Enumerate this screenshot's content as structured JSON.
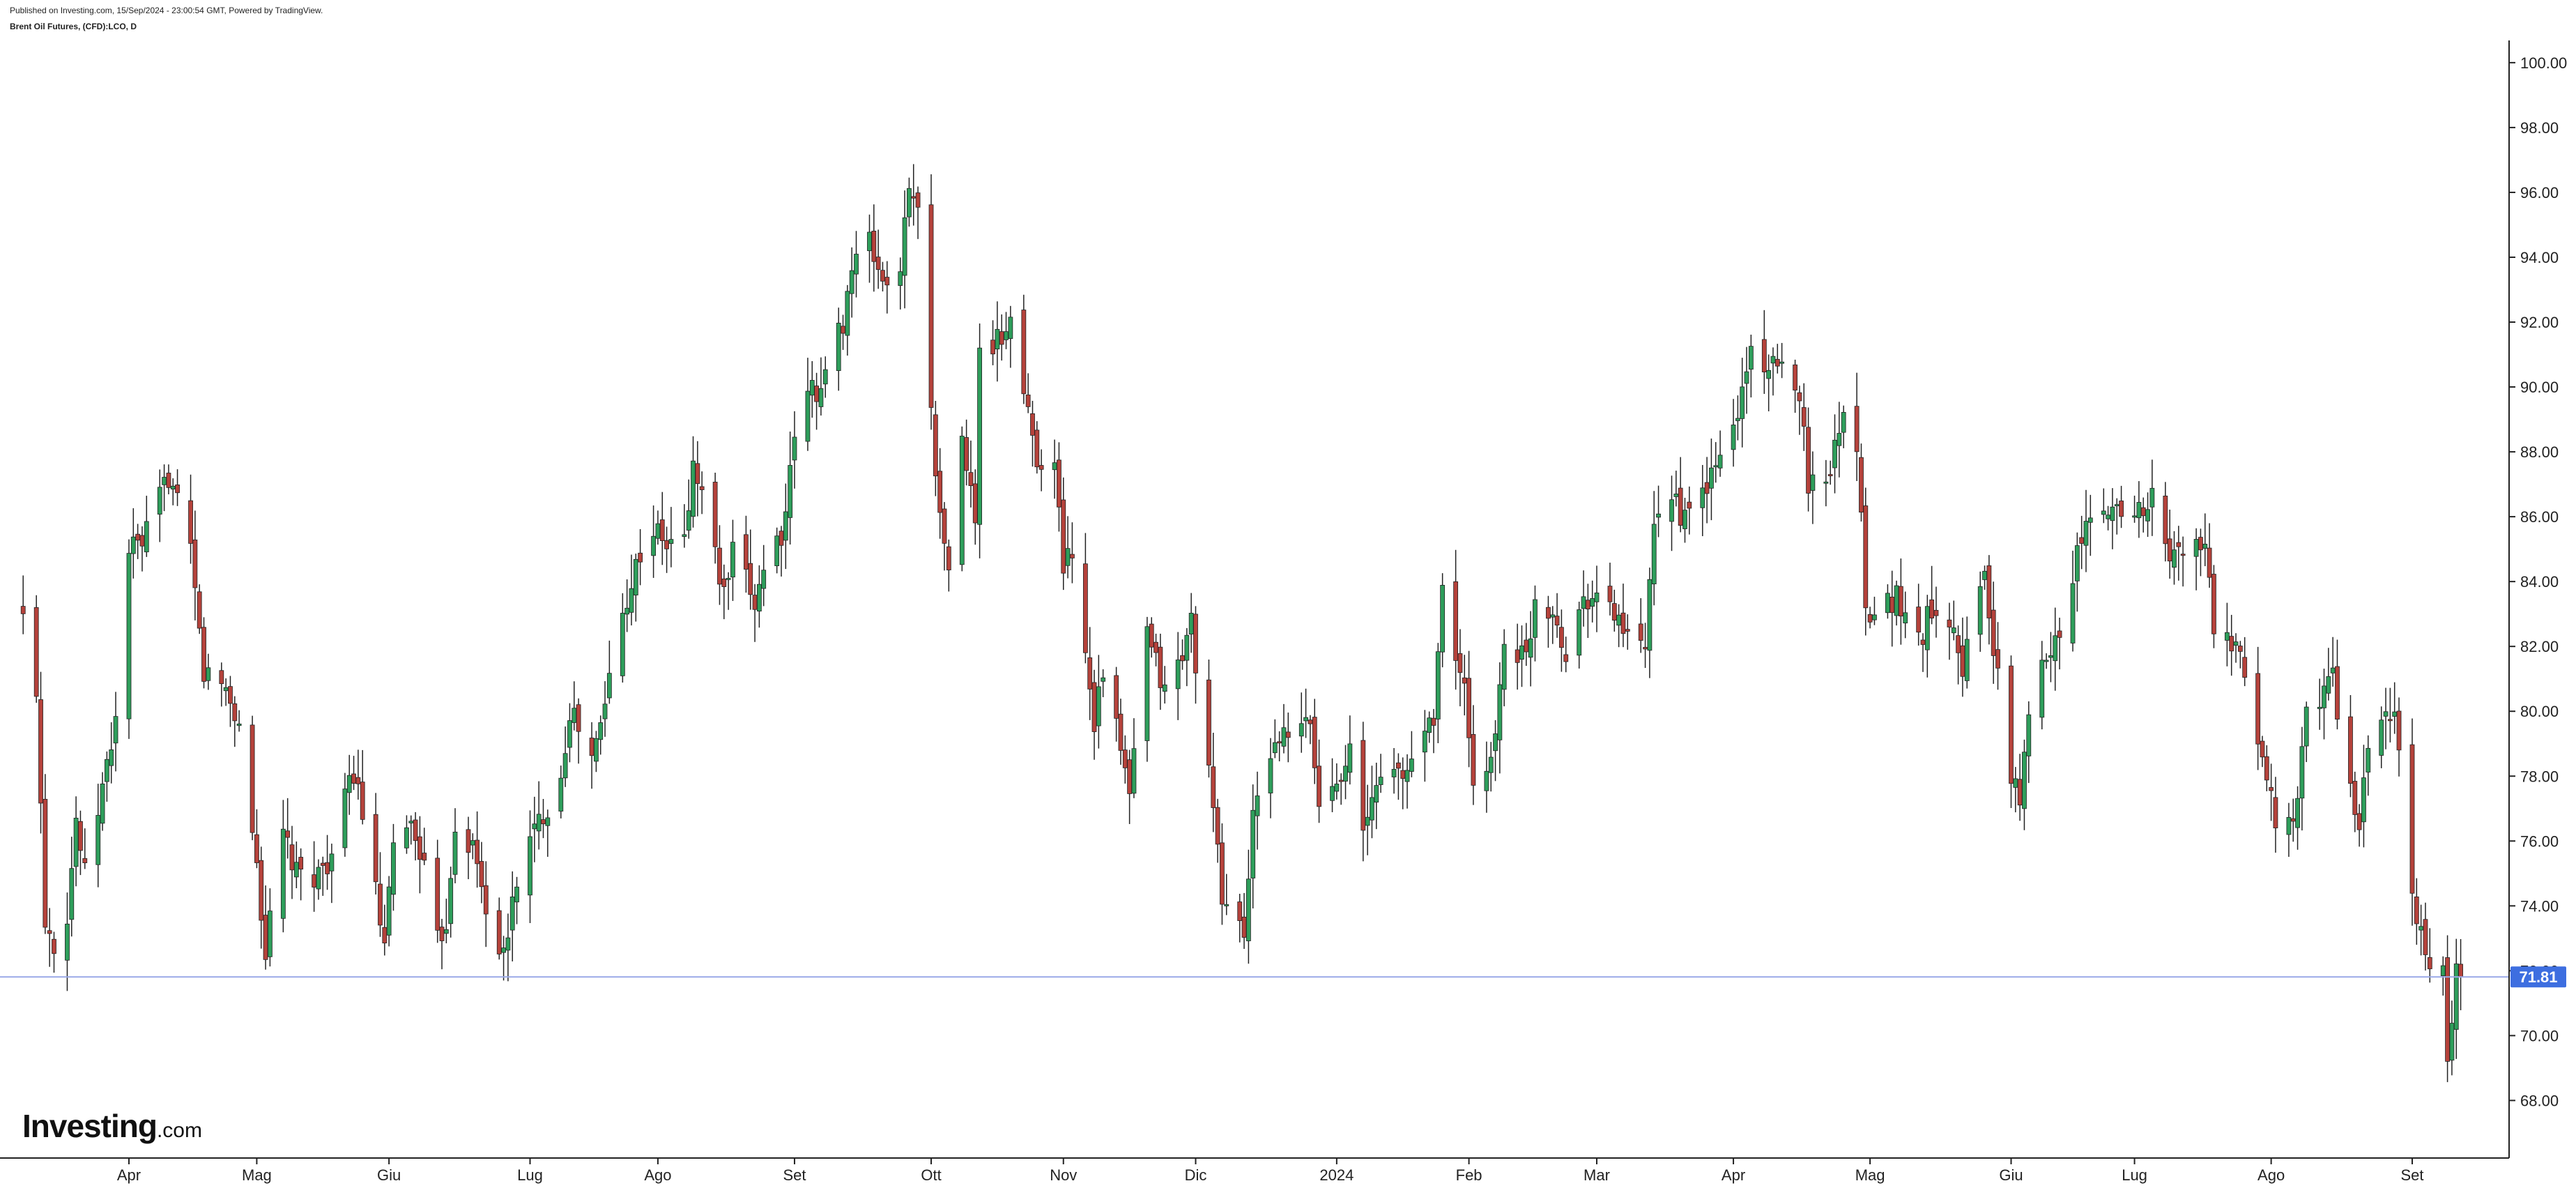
{
  "header": {
    "published": "Published on Investing.com, 15/Sep/2024 - 23:00:54 GMT, Powered by TradingView.",
    "symbol": "Brent Oil Futures, (CFD):LCO, D"
  },
  "logo": {
    "brand": "Investing",
    "suffix": ".com"
  },
  "colors": {
    "up": "#2e9e5b",
    "down": "#b5423b",
    "wick": "#222222",
    "axis": "#222222",
    "last_price_line": "#9aa9e8",
    "last_price_badge": "#3d6ee0"
  },
  "chart_data": {
    "type": "candlestick",
    "ylim": [
      67.3,
      100.9
    ],
    "yticks": [
      68,
      70,
      72,
      74,
      76,
      78,
      80,
      82,
      84,
      86,
      88,
      90,
      92,
      94,
      96,
      98,
      100
    ],
    "ytick_labels": [
      "68.00",
      "70.00",
      "72.00",
      "74.00",
      "76.00",
      "78.00",
      "80.00",
      "82.00",
      "84.00",
      "86.00",
      "88.00",
      "90.00",
      "92.00",
      "94.00",
      "96.00",
      "98.00",
      "100.00"
    ],
    "x_start": "2023-03-10",
    "x_end": "2024-09-13",
    "xticks": [
      {
        "label": "Apr",
        "date": "2023-04-03"
      },
      {
        "label": "Mag",
        "date": "2023-05-02"
      },
      {
        "label": "Giu",
        "date": "2023-06-01"
      },
      {
        "label": "Lug",
        "date": "2023-07-03"
      },
      {
        "label": "Ago",
        "date": "2023-08-01"
      },
      {
        "label": "Set",
        "date": "2023-09-01"
      },
      {
        "label": "Ott",
        "date": "2023-10-02"
      },
      {
        "label": "Nov",
        "date": "2023-11-01"
      },
      {
        "label": "Dic",
        "date": "2023-12-01"
      },
      {
        "label": "2024",
        "date": "2024-01-02"
      },
      {
        "label": "Feb",
        "date": "2024-02-01"
      },
      {
        "label": "Mar",
        "date": "2024-03-01"
      },
      {
        "label": "Apr",
        "date": "2024-04-01"
      },
      {
        "label": "Mag",
        "date": "2024-05-02"
      },
      {
        "label": "Giu",
        "date": "2024-06-03"
      },
      {
        "label": "Lug",
        "date": "2024-07-01"
      },
      {
        "label": "Ago",
        "date": "2024-08-01"
      },
      {
        "label": "Set",
        "date": "2024-09-02"
      }
    ],
    "close_path": [
      [
        "2023-03-10",
        82.8
      ],
      [
        "2023-03-13",
        80.8
      ],
      [
        "2023-03-15",
        73.7
      ],
      [
        "2023-03-17",
        72.9
      ],
      [
        "2023-03-20",
        73.8
      ],
      [
        "2023-03-22",
        76.7
      ],
      [
        "2023-03-24",
        74.9
      ],
      [
        "2023-03-29",
        78.3
      ],
      [
        "2023-03-31",
        79.8
      ],
      [
        "2023-04-03",
        85.0
      ],
      [
        "2023-04-06",
        85.1
      ],
      [
        "2023-04-12",
        87.3
      ],
      [
        "2023-04-14",
        86.3
      ],
      [
        "2023-04-17",
        84.8
      ],
      [
        "2023-04-20",
        81.2
      ],
      [
        "2023-04-25",
        80.7
      ],
      [
        "2023-04-28",
        79.5
      ],
      [
        "2023-05-02",
        75.3
      ],
      [
        "2023-05-04",
        72.5
      ],
      [
        "2023-05-08",
        76.2
      ],
      [
        "2023-05-11",
        74.9
      ],
      [
        "2023-05-16",
        75.0
      ],
      [
        "2023-05-19",
        75.6
      ],
      [
        "2023-05-24",
        78.2
      ],
      [
        "2023-05-26",
        76.9
      ],
      [
        "2023-05-31",
        72.6
      ],
      [
        "2023-06-02",
        75.7
      ],
      [
        "2023-06-05",
        76.7
      ],
      [
        "2023-06-08",
        75.8
      ],
      [
        "2023-06-12",
        72.8
      ],
      [
        "2023-06-14",
        73.6
      ],
      [
        "2023-06-16",
        76.6
      ],
      [
        "2023-06-20",
        75.8
      ],
      [
        "2023-06-23",
        74.0
      ],
      [
        "2023-06-27",
        72.3
      ],
      [
        "2023-06-30",
        74.9
      ],
      [
        "2023-07-05",
        76.6
      ],
      [
        "2023-07-10",
        78.0
      ],
      [
        "2023-07-12",
        80.1
      ],
      [
        "2023-07-17",
        78.5
      ],
      [
        "2023-07-19",
        79.5
      ],
      [
        "2023-07-21",
        81.1
      ],
      [
        "2023-07-25",
        83.6
      ],
      [
        "2023-07-28",
        84.9
      ],
      [
        "2023-07-31",
        85.6
      ],
      [
        "2023-08-03",
        85.1
      ],
      [
        "2023-08-07",
        85.3
      ],
      [
        "2023-08-09",
        87.5
      ],
      [
        "2023-08-11",
        86.8
      ],
      [
        "2023-08-16",
        83.5
      ],
      [
        "2023-08-18",
        84.8
      ],
      [
        "2023-08-23",
        83.4
      ],
      [
        "2023-08-25",
        84.5
      ],
      [
        "2023-08-30",
        85.8
      ],
      [
        "2023-09-01",
        88.6
      ],
      [
        "2023-09-05",
        90.0
      ],
      [
        "2023-09-07",
        89.9
      ],
      [
        "2023-09-12",
        92.1
      ],
      [
        "2023-09-14",
        93.7
      ],
      [
        "2023-09-18",
        94.4
      ],
      [
        "2023-09-21",
        93.3
      ],
      [
        "2023-09-25",
        93.3
      ],
      [
        "2023-09-27",
        96.5
      ],
      [
        "2023-09-29",
        95.3
      ],
      [
        "2023-10-04",
        85.8
      ],
      [
        "2023-10-06",
        84.6
      ],
      [
        "2023-10-09",
        88.2
      ],
      [
        "2023-10-12",
        86.0
      ],
      [
        "2023-10-13",
        90.9
      ],
      [
        "2023-10-18",
        91.5
      ],
      [
        "2023-10-20",
        92.2
      ],
      [
        "2023-10-23",
        89.8
      ],
      [
        "2023-10-26",
        87.9
      ],
      [
        "2023-10-30",
        87.5
      ],
      [
        "2023-11-01",
        84.6
      ],
      [
        "2023-11-03",
        85.0
      ],
      [
        "2023-11-08",
        79.8
      ],
      [
        "2023-11-10",
        81.4
      ],
      [
        "2023-11-16",
        77.4
      ],
      [
        "2023-11-20",
        82.3
      ],
      [
        "2023-11-24",
        80.6
      ],
      [
        "2023-11-28",
        81.7
      ],
      [
        "2023-11-30",
        82.8
      ],
      [
        "2023-12-04",
        78.0
      ],
      [
        "2023-12-07",
        74.3
      ],
      [
        "2023-12-12",
        73.2
      ],
      [
        "2023-12-14",
        76.6
      ],
      [
        "2023-12-19",
        79.2
      ],
      [
        "2023-12-22",
        79.1
      ],
      [
        "2023-12-27",
        79.7
      ],
      [
        "2023-12-29",
        77.0
      ],
      [
        "2024-01-03",
        78.3
      ],
      [
        "2024-01-05",
        78.8
      ],
      [
        "2024-01-08",
        76.1
      ],
      [
        "2024-01-12",
        78.3
      ],
      [
        "2024-01-17",
        77.9
      ],
      [
        "2024-01-19",
        78.6
      ],
      [
        "2024-01-24",
        80.0
      ],
      [
        "2024-01-26",
        83.6
      ],
      [
        "2024-01-31",
        80.6
      ],
      [
        "2024-02-02",
        77.3
      ],
      [
        "2024-02-07",
        79.2
      ],
      [
        "2024-02-09",
        82.2
      ],
      [
        "2024-02-14",
        81.6
      ],
      [
        "2024-02-16",
        83.5
      ],
      [
        "2024-02-21",
        83.0
      ],
      [
        "2024-02-23",
        81.6
      ],
      [
        "2024-02-27",
        83.6
      ],
      [
        "2024-02-29",
        83.6
      ],
      [
        "2024-03-06",
        82.9
      ],
      [
        "2024-03-08",
        82.1
      ],
      [
        "2024-03-12",
        81.9
      ],
      [
        "2024-03-14",
        85.4
      ],
      [
        "2024-03-18",
        86.9
      ],
      [
        "2024-03-21",
        85.8
      ],
      [
        "2024-03-25",
        86.7
      ],
      [
        "2024-03-28",
        87.5
      ],
      [
        "2024-04-02",
        89.2
      ],
      [
        "2024-04-05",
        91.2
      ],
      [
        "2024-04-10",
        90.5
      ],
      [
        "2024-04-12",
        90.4
      ],
      [
        "2024-04-16",
        90.0
      ],
      [
        "2024-04-18",
        87.1
      ],
      [
        "2024-04-22",
        87.0
      ],
      [
        "2024-04-25",
        89.0
      ],
      [
        "2024-04-29",
        88.4
      ],
      [
        "2024-05-01",
        83.4
      ],
      [
        "2024-05-03",
        83.0
      ],
      [
        "2024-05-08",
        83.6
      ],
      [
        "2024-05-10",
        82.8
      ],
      [
        "2024-05-14",
        82.4
      ],
      [
        "2024-05-16",
        83.3
      ],
      [
        "2024-05-21",
        82.8
      ],
      [
        "2024-05-23",
        81.4
      ],
      [
        "2024-05-28",
        84.3
      ],
      [
        "2024-05-30",
        81.9
      ],
      [
        "2024-06-03",
        77.9
      ],
      [
        "2024-06-05",
        77.4
      ],
      [
        "2024-06-07",
        79.6
      ],
      [
        "2024-06-11",
        81.9
      ],
      [
        "2024-06-14",
        82.6
      ],
      [
        "2024-06-17",
        84.3
      ],
      [
        "2024-06-20",
        85.7
      ],
      [
        "2024-06-24",
        86.0
      ],
      [
        "2024-06-28",
        86.4
      ],
      [
        "2024-07-02",
        86.2
      ],
      [
        "2024-07-05",
        86.5
      ],
      [
        "2024-07-09",
        84.7
      ],
      [
        "2024-07-12",
        85.0
      ],
      [
        "2024-07-17",
        85.1
      ],
      [
        "2024-07-19",
        82.6
      ],
      [
        "2024-07-24",
        81.7
      ],
      [
        "2024-07-26",
        81.1
      ],
      [
        "2024-07-30",
        78.6
      ],
      [
        "2024-08-02",
        76.8
      ],
      [
        "2024-08-06",
        76.2
      ],
      [
        "2024-08-09",
        79.9
      ],
      [
        "2024-08-13",
        80.7
      ],
      [
        "2024-08-15",
        81.0
      ],
      [
        "2024-08-19",
        77.7
      ],
      [
        "2024-08-21",
        76.1
      ],
      [
        "2024-08-23",
        79.0
      ],
      [
        "2024-08-27",
        80.0
      ],
      [
        "2024-08-29",
        79.7
      ],
      [
        "2024-09-03",
        73.5
      ],
      [
        "2024-09-05",
        72.7
      ],
      [
        "2024-09-09",
        71.8
      ],
      [
        "2024-09-10",
        69.2
      ],
      [
        "2024-09-11",
        70.6
      ],
      [
        "2024-09-12",
        71.9
      ],
      [
        "2024-09-13",
        71.81
      ]
    ],
    "last_price": 71.81,
    "last_price_label": "71.81",
    "grid": false
  }
}
